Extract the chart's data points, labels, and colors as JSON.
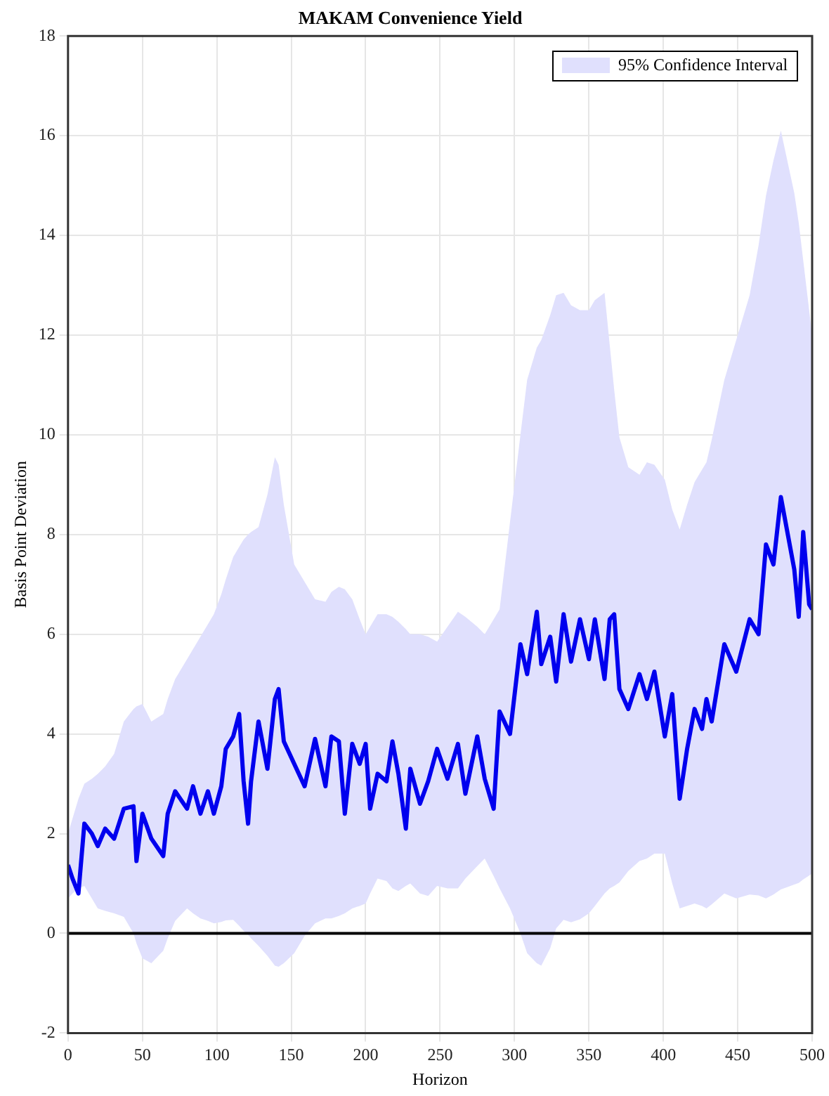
{
  "chart_data": {
    "type": "line",
    "title": "MAKAM Convenience Yield",
    "xlabel": "Horizon",
    "ylabel": "Basis Point Deviation",
    "xlim": [
      0,
      500
    ],
    "xticks": [
      0,
      50,
      100,
      150,
      200,
      250,
      300,
      350,
      400,
      450,
      500
    ],
    "ylim": [
      -2,
      18
    ],
    "yticks": [
      -2,
      0,
      2,
      4,
      6,
      8,
      10,
      12,
      14,
      16,
      18
    ],
    "grid": true,
    "legend": "top right",
    "line_style": "solid",
    "marker": "none",
    "ref_lines": [
      {
        "axis": "y",
        "value": 0,
        "color": "#000000"
      }
    ],
    "series": [
      {
        "name": "95% Confidence Interval",
        "color": "#0000ee",
        "x": [
          0,
          3,
          7,
          11,
          16,
          20,
          25,
          31,
          37.5,
          44,
          46,
          50,
          56,
          64,
          67,
          72,
          80,
          84,
          89,
          94,
          98,
          103,
          106,
          111,
          115,
          118,
          121,
          123,
          128,
          134,
          139,
          141.5,
          145,
          152,
          159,
          166,
          173,
          177,
          182,
          186,
          191,
          196,
          200,
          203,
          208,
          214,
          218,
          222,
          227,
          230,
          236.5,
          242,
          248,
          255,
          262,
          267,
          275,
          280,
          286,
          290,
          297,
          304,
          308.5,
          315,
          318,
          324,
          328,
          333,
          338,
          344,
          350,
          354,
          360.5,
          364,
          367,
          370.5,
          376.5,
          384,
          389,
          394,
          401,
          406,
          411,
          416,
          421,
          426,
          429,
          432.5,
          441,
          449,
          458,
          464,
          469,
          474,
          479,
          488,
          491,
          494,
          498,
          500
        ],
        "values": [
          1.37,
          1.1,
          0.8,
          2.2,
          2.0,
          1.75,
          2.1,
          1.9,
          2.5,
          2.55,
          1.45,
          2.4,
          1.9,
          1.55,
          2.4,
          2.85,
          2.5,
          2.95,
          2.4,
          2.85,
          2.4,
          2.95,
          3.7,
          3.95,
          4.4,
          3.05,
          2.2,
          3.05,
          4.25,
          3.3,
          4.7,
          4.9,
          3.85,
          3.4,
          2.95,
          3.9,
          2.95,
          3.95,
          3.85,
          2.4,
          3.8,
          3.4,
          3.8,
          2.5,
          3.2,
          3.05,
          3.85,
          3.2,
          2.1,
          3.3,
          2.6,
          3.05,
          3.7,
          3.1,
          3.8,
          2.8,
          3.95,
          3.1,
          2.5,
          4.45,
          4.0,
          5.8,
          5.2,
          6.45,
          5.4,
          5.95,
          5.05,
          6.4,
          5.45,
          6.3,
          5.5,
          6.3,
          5.1,
          6.3,
          6.4,
          4.9,
          4.5,
          5.2,
          4.7,
          5.25,
          3.95,
          4.8,
          2.7,
          3.7,
          4.5,
          4.1,
          4.7,
          4.25,
          5.8,
          5.25,
          6.3,
          6.0,
          7.8,
          7.4,
          8.75,
          7.3,
          6.35,
          8.05,
          6.6,
          6.5
        ],
        "upper": [
          2.0,
          2.3,
          2.7,
          3.0,
          3.1,
          3.2,
          3.35,
          3.6,
          4.25,
          4.5,
          4.55,
          4.6,
          4.25,
          4.4,
          4.7,
          5.1,
          5.5,
          5.7,
          5.95,
          6.2,
          6.4,
          6.8,
          7.1,
          7.55,
          7.75,
          7.9,
          8.0,
          8.05,
          8.15,
          8.8,
          9.55,
          9.4,
          8.6,
          7.4,
          7.05,
          6.7,
          6.65,
          6.85,
          6.95,
          6.9,
          6.7,
          6.3,
          6.0,
          6.15,
          6.4,
          6.4,
          6.35,
          6.25,
          6.1,
          6.0,
          6.0,
          5.95,
          5.85,
          6.15,
          6.45,
          6.35,
          6.15,
          6.0,
          6.3,
          6.5,
          8.25,
          10.0,
          11.1,
          11.75,
          11.9,
          12.4,
          12.8,
          12.85,
          12.6,
          12.5,
          12.5,
          12.7,
          12.85,
          11.8,
          10.9,
          9.95,
          9.35,
          9.2,
          9.45,
          9.4,
          9.1,
          8.5,
          8.1,
          8.6,
          9.05,
          9.3,
          9.45,
          9.9,
          11.1,
          11.9,
          12.8,
          13.8,
          14.8,
          15.5,
          16.1,
          14.85,
          14.25,
          13.5,
          12.5,
          12.0
        ],
        "lower": [
          0.7,
          0.8,
          0.9,
          0.95,
          0.7,
          0.5,
          0.45,
          0.4,
          0.33,
          0.0,
          -0.2,
          -0.5,
          -0.6,
          -0.35,
          -0.1,
          0.25,
          0.5,
          0.4,
          0.3,
          0.25,
          0.2,
          0.23,
          0.26,
          0.27,
          0.15,
          0.05,
          -0.03,
          -0.1,
          -0.25,
          -0.45,
          -0.65,
          -0.67,
          -0.6,
          -0.4,
          -0.05,
          0.2,
          0.3,
          0.3,
          0.35,
          0.4,
          0.5,
          0.55,
          0.6,
          0.8,
          1.1,
          1.05,
          0.9,
          0.85,
          0.95,
          1.0,
          0.8,
          0.75,
          0.95,
          0.9,
          0.9,
          1.1,
          1.35,
          1.5,
          1.15,
          0.9,
          0.5,
          0.0,
          -0.4,
          -0.6,
          -0.65,
          -0.3,
          0.1,
          0.27,
          0.22,
          0.28,
          0.4,
          0.55,
          0.8,
          0.9,
          0.95,
          1.02,
          1.25,
          1.45,
          1.5,
          1.6,
          1.6,
          1.0,
          0.5,
          0.55,
          0.6,
          0.55,
          0.5,
          0.58,
          0.8,
          0.7,
          0.78,
          0.76,
          0.7,
          0.78,
          0.88,
          0.98,
          1.01,
          1.08,
          1.16,
          1.2
        ]
      }
    ]
  }
}
